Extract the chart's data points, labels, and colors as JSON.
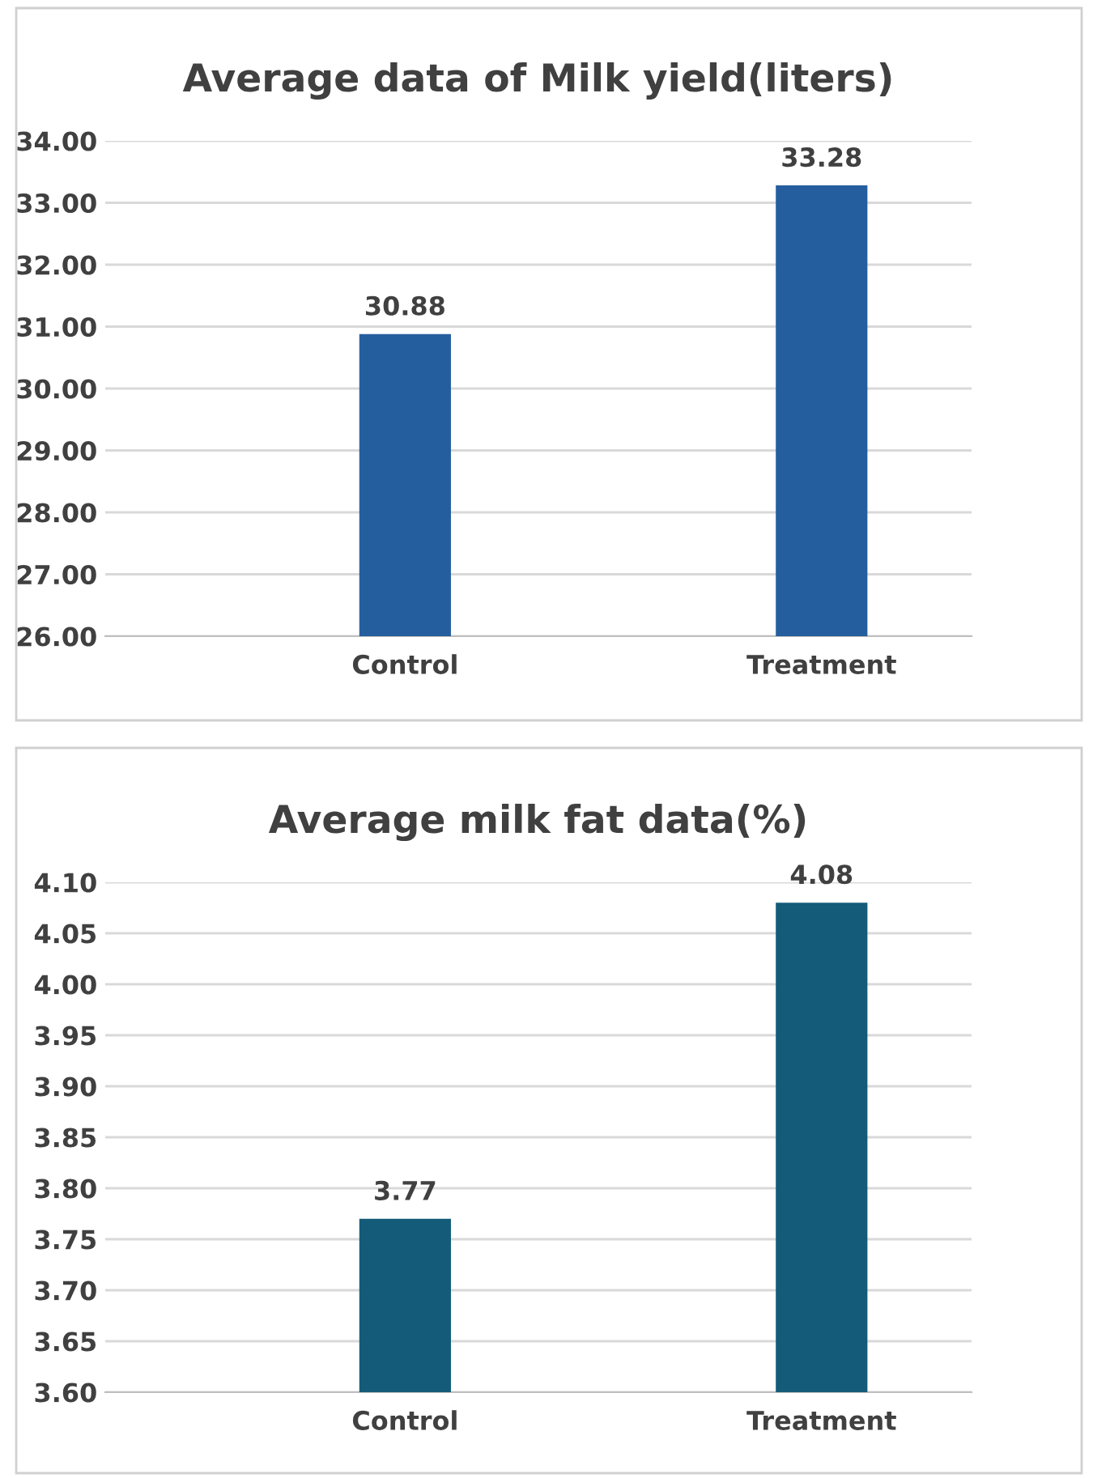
{
  "chart_data": [
    {
      "type": "bar",
      "title": "Average data of Milk yield(liters)",
      "categories": [
        "Control",
        "Treatment"
      ],
      "values": [
        30.88,
        33.28
      ],
      "color": "#255e9e",
      "ylim": [
        26,
        34
      ],
      "yticks": [
        {
          "value": 26,
          "label": "26.00"
        },
        {
          "value": 27,
          "label": "27.00"
        },
        {
          "value": 28,
          "label": "28.00"
        },
        {
          "value": 29,
          "label": "29.00"
        },
        {
          "value": 30,
          "label": "30.00"
        },
        {
          "value": 31,
          "label": "31.00"
        },
        {
          "value": 32,
          "label": "32.00"
        },
        {
          "value": 33,
          "label": "33.00"
        },
        {
          "value": 34,
          "label": "34.00"
        }
      ],
      "grid": "y",
      "data_labels": true
    },
    {
      "type": "bar",
      "title": "Average milk fat data(%)",
      "categories": [
        "Control",
        "Treatment"
      ],
      "values": [
        3.77,
        4.08
      ],
      "color": "#145b7a",
      "ylim": [
        3.6,
        4.1
      ],
      "yticks": [
        {
          "value": 3.6,
          "label": "3.60"
        },
        {
          "value": 3.65,
          "label": "3.65"
        },
        {
          "value": 3.7,
          "label": "3.70"
        },
        {
          "value": 3.75,
          "label": "3.75"
        },
        {
          "value": 3.8,
          "label": "3.80"
        },
        {
          "value": 3.85,
          "label": "3.85"
        },
        {
          "value": 3.9,
          "label": "3.90"
        },
        {
          "value": 3.95,
          "label": "3.95"
        },
        {
          "value": 4.0,
          "label": "4.00"
        },
        {
          "value": 4.05,
          "label": "4.05"
        },
        {
          "value": 4.1,
          "label": "4.10"
        }
      ],
      "grid": "y",
      "data_labels": true
    }
  ]
}
